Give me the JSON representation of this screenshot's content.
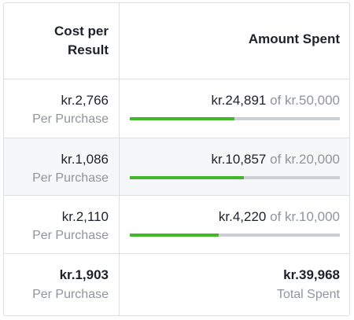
{
  "header": {
    "cost": "Cost per Result",
    "amount": "Amount Spent"
  },
  "rows": [
    {
      "cost": "kr.2,766",
      "cost_note": "Per Purchase",
      "spent": {
        "value": 24891,
        "label": "kr.24,891"
      },
      "of": "of",
      "budget": {
        "value": 50000,
        "label": "kr.50,000"
      }
    },
    {
      "cost": "kr.1,086",
      "cost_note": "Per Purchase",
      "spent": {
        "value": 10857,
        "label": "kr.10,857"
      },
      "of": "of",
      "budget": {
        "value": 20000,
        "label": "kr.20,000"
      }
    },
    {
      "cost": "kr.2,110",
      "cost_note": "Per Purchase",
      "spent": {
        "value": 4220,
        "label": "kr.4,220"
      },
      "of": "of",
      "budget": {
        "value": 10000,
        "label": "kr.10,000"
      }
    }
  ],
  "total": {
    "cost": "kr.1,903",
    "cost_note": "Per Purchase",
    "spent": "kr.39,968",
    "spent_note": "Total Spent"
  }
}
